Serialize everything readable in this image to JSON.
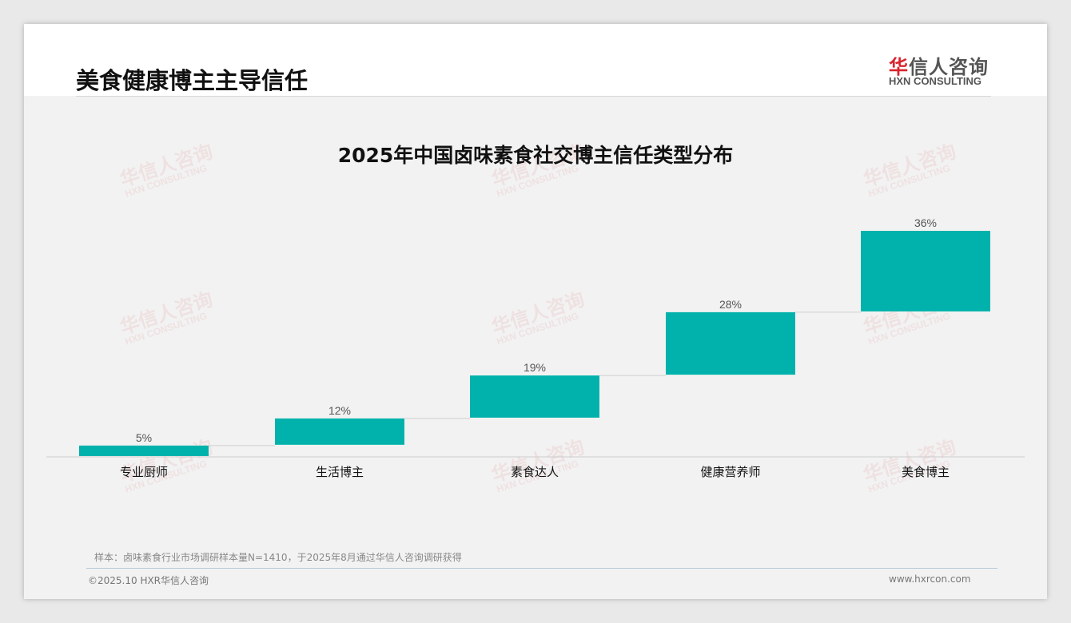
{
  "header": {
    "title": "美食健康博主主导信任",
    "logo_cn_red": "华",
    "logo_cn": "信人咨询",
    "logo_en": "HXN CONSULTING"
  },
  "watermark": {
    "cn": "华信人咨询",
    "en": "HXN CONSULTING"
  },
  "chart_data": {
    "type": "bar",
    "subtype": "waterfall",
    "title": "2025年中国卤味素食社交博主信任类型分布",
    "categories": [
      "专业厨师",
      "生活博主",
      "素食达人",
      "健康营养师",
      "美食博主"
    ],
    "values": [
      5,
      12,
      19,
      28,
      36
    ],
    "labels": [
      "5%",
      "12%",
      "19%",
      "28%",
      "36%"
    ],
    "ylim": [
      0,
      100
    ],
    "color": "#00b2ab",
    "grid": false
  },
  "footer": {
    "note": "样本：卤味素食行业市场调研样本量N=1410，于2025年8月通过华信人咨询调研获得",
    "copyright": "©2025.10 HXR华信人咨询",
    "website": "www.hxrcon.com"
  }
}
